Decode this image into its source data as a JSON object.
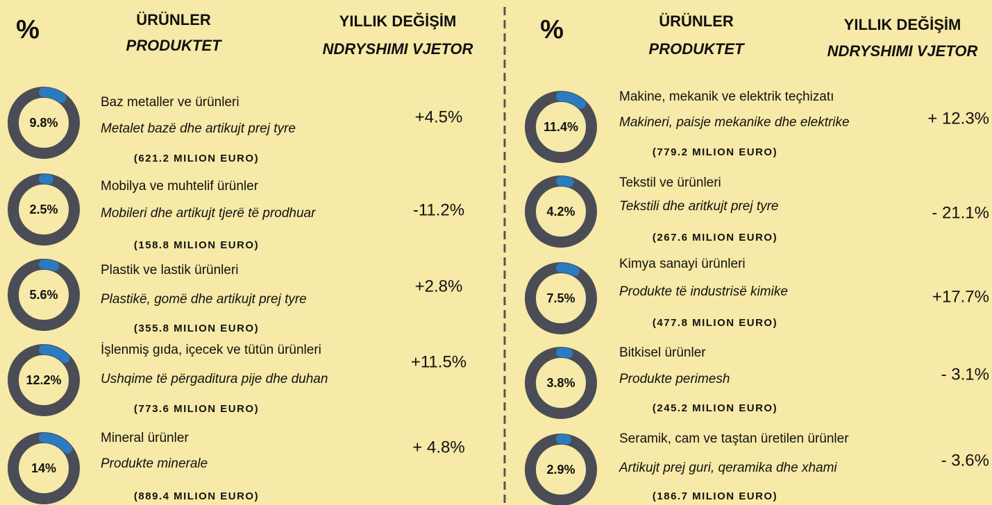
{
  "columns": [
    {
      "header": {
        "percent": "%",
        "products_tr": "ÜRÜNLER",
        "products_sq": "PRODUKTET",
        "change_tr": "YILLIK DEĞİŞİM",
        "change_sq": "NDRYSHIMI VJETOR"
      },
      "items": [
        {
          "share": 9.8,
          "share_label": "9.8%",
          "name_tr": "Baz metaller ve ürünleri",
          "name_sq": "Metalet bazë dhe artikujt prej tyre",
          "amount": "(621.2 MILION EURO)",
          "change": "+4.5%"
        },
        {
          "share": 2.5,
          "share_label": "2.5%",
          "name_tr": "Mobilya ve muhtelif ürünler",
          "name_sq": "Mobileri dhe artikujt tjerë të prodhuar",
          "amount": "(158.8 MILION EURO)",
          "change": "-11.2%"
        },
        {
          "share": 5.6,
          "share_label": "5.6%",
          "name_tr": "Plastik ve lastik ürünleri",
          "name_sq": "Plastikë, gomë dhe artikujt prej tyre",
          "amount": "(355.8 MILION EURO)",
          "change": "+2.8%"
        },
        {
          "share": 12.2,
          "share_label": "12.2%",
          "name_tr": "İşlenmiş gıda, içecek ve tütün ürünleri",
          "name_sq": "Ushqime të përgaditura pije dhe duhan",
          "amount": "(773.6 MILION EURO)",
          "change": "+11.5%"
        },
        {
          "share": 14,
          "share_label": "14%",
          "name_tr": "Mineral ürünler",
          "name_sq": "Produkte minerale",
          "amount": "(889.4 MILION EURO)",
          "change": "+ 4.8%"
        }
      ]
    },
    {
      "header": {
        "percent": "%",
        "products_tr": "ÜRÜNLER",
        "products_sq": "PRODUKTET",
        "change_tr": "YILLIK DEĞİŞİM",
        "change_sq": "NDRYSHIMI VJETOR"
      },
      "items": [
        {
          "share": 11.4,
          "share_label": "11.4%",
          "name_tr": "Makine, mekanik ve elektrik teçhizatı",
          "name_sq": "Makineri, paisje mekanike dhe elektrike",
          "amount": "(779.2 MILION EURO)",
          "change": "+ 12.3%"
        },
        {
          "share": 4.2,
          "share_label": "4.2%",
          "name_tr": "Tekstil ve ürünleri",
          "name_sq": "Tekstili dhe aritkujt prej tyre",
          "amount": "(267.6 MILION EURO)",
          "change": "- 21.1%"
        },
        {
          "share": 7.5,
          "share_label": "7.5%",
          "name_tr": "Kimya sanayi ürünleri",
          "name_sq": "Produkte të industrisë kimike",
          "amount": "(477.8 MILION EURO)",
          "change": "+17.7%"
        },
        {
          "share": 3.8,
          "share_label": "3.8%",
          "name_tr": "Bitkisel ürünler",
          "name_sq": "Produkte perimesh",
          "amount": "(245.2 MILION EURO)",
          "change": "- 3.1%"
        },
        {
          "share": 2.9,
          "share_label": "2.9%",
          "name_tr": "Seramik, cam ve taştan üretilen ürünler",
          "name_sq": "Artikujt prej guri, qeramika dhe xhami",
          "amount": "(186.7 MILION EURO)",
          "change": "- 3.6%"
        }
      ]
    }
  ]
}
